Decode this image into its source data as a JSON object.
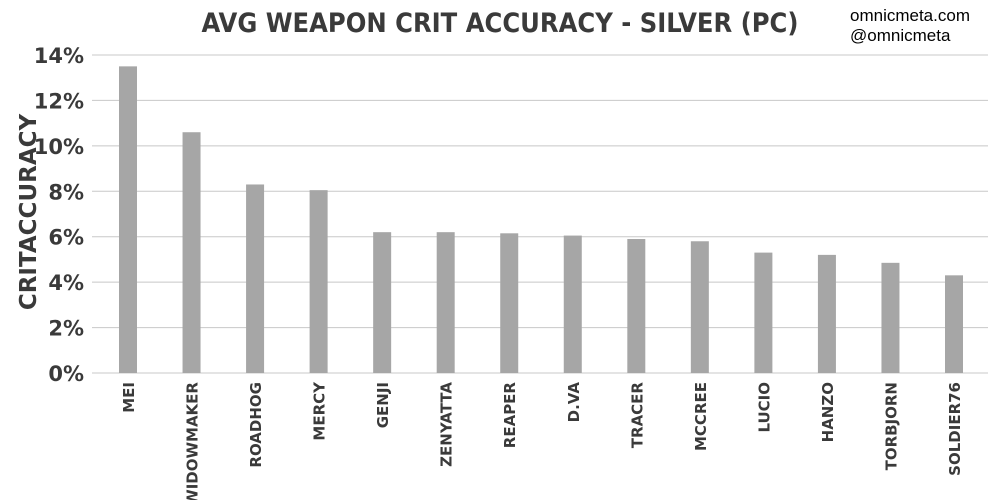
{
  "watermark": {
    "line1": "omnicmeta.com",
    "line2": "@omnicmeta"
  },
  "chart_data": {
    "type": "bar",
    "title": "AVG WEAPON CRIT ACCURACY - SILVER (PC)",
    "xlabel": "",
    "ylabel": "CRITACCURACY",
    "categories": [
      "MEI",
      "WIDOWMAKER",
      "ROADHOG",
      "MERCY",
      "GENJI",
      "ZENYATTA",
      "REAPER",
      "D.VA",
      "TRACER",
      "MCCREE",
      "LUCIO",
      "HANZO",
      "TORBJORN",
      "SOLDIER76"
    ],
    "values": [
      13.5,
      10.6,
      8.3,
      8.05,
      6.2,
      6.2,
      6.15,
      6.05,
      5.9,
      5.8,
      5.3,
      5.2,
      4.85,
      4.3
    ],
    "ylim": [
      0,
      14
    ],
    "yticks": [
      0,
      2,
      4,
      6,
      8,
      10,
      12,
      14
    ],
    "ytick_labels": [
      "0%",
      "2%",
      "4%",
      "6%",
      "8%",
      "10%",
      "12%",
      "14%"
    ],
    "grid": true,
    "bar_color": "#a6a6a6",
    "grid_color": "#c8c8c8",
    "text_color": "#3a3a3a"
  }
}
